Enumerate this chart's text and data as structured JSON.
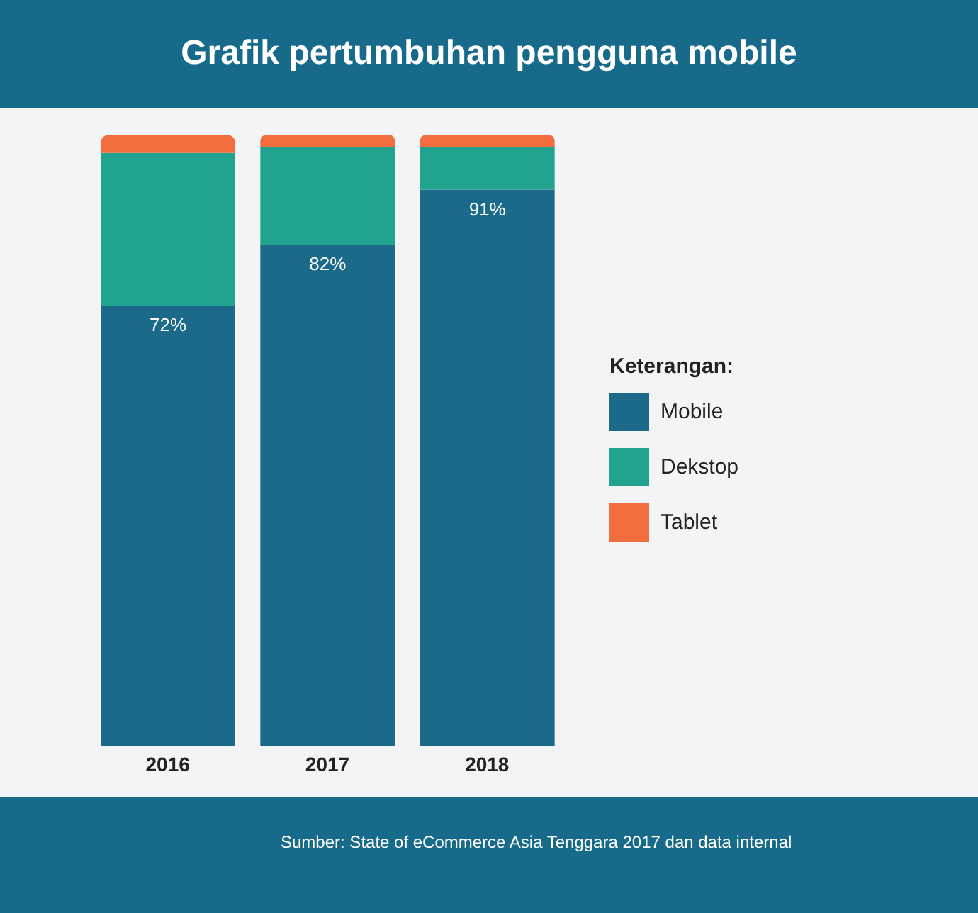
{
  "chart_data": {
    "type": "bar",
    "title": "Grafik pertumbuhan pengguna mobile",
    "categories": [
      "2016",
      "2017",
      "2018"
    ],
    "stacked": true,
    "ylim": [
      0,
      100
    ],
    "legend": "right",
    "legend_title": "Keterangan:",
    "series": [
      {
        "name": "Mobile",
        "color": "#1b6a89",
        "values": [
          72,
          82,
          91
        ],
        "value_labels": [
          "72%",
          "82%",
          "91%"
        ]
      },
      {
        "name": "Dekstop",
        "color": "#21a38f",
        "values": [
          25,
          16,
          7
        ]
      },
      {
        "name": "Tablet",
        "color": "#f26d3d",
        "values": [
          3,
          2,
          2
        ]
      }
    ],
    "annotations": [
      "Sumber: State of eCommerce Asia Tenggara 2017 dan data internal"
    ]
  }
}
